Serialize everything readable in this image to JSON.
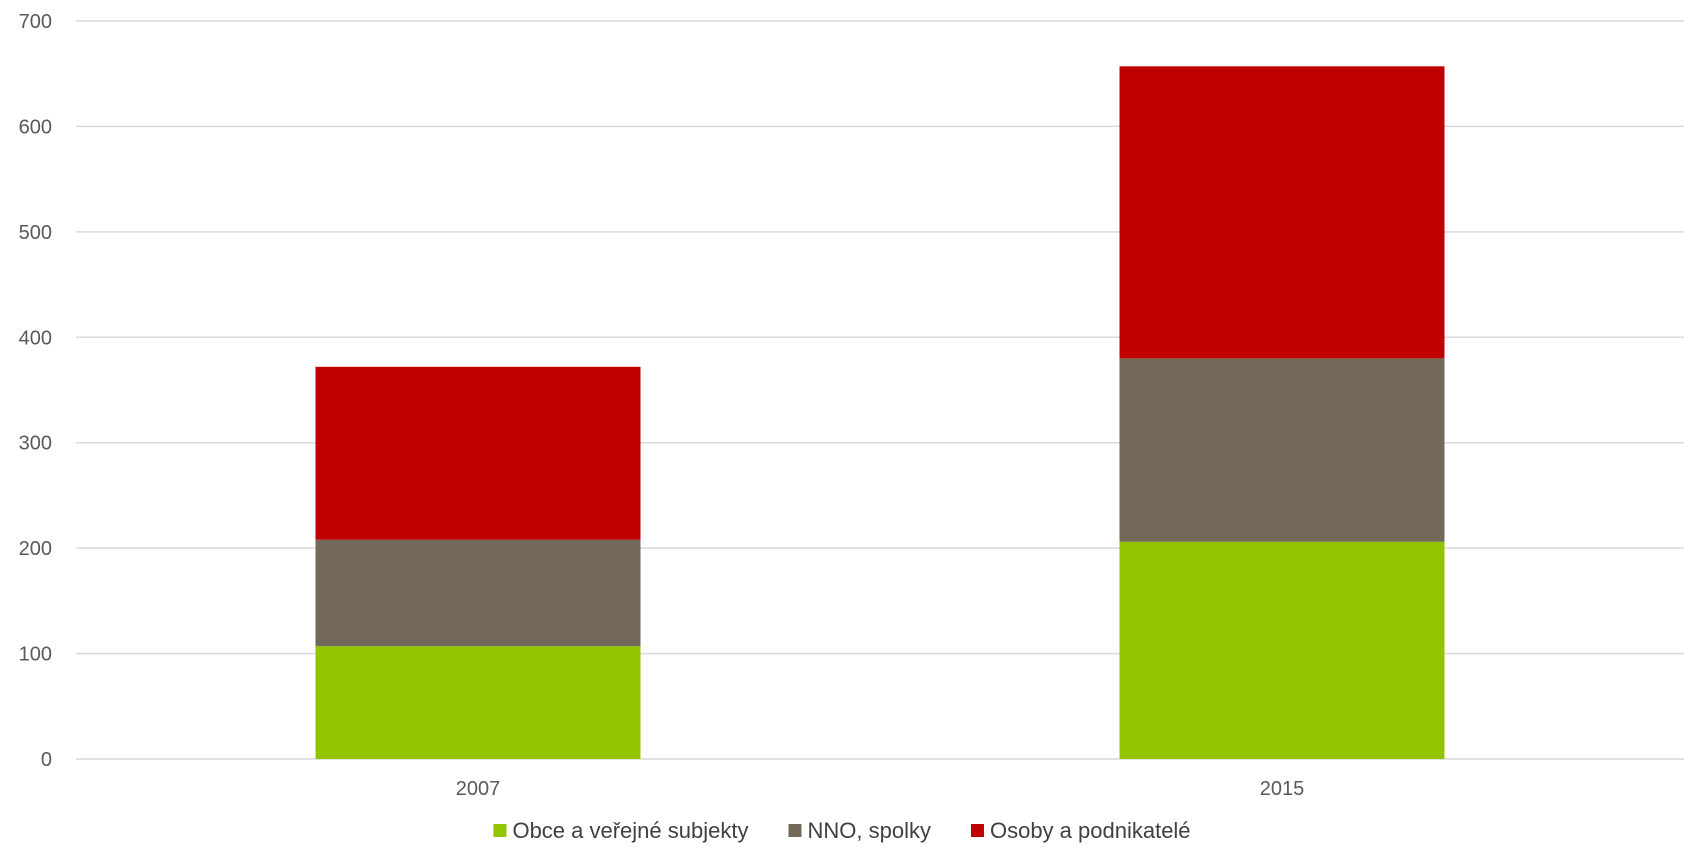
{
  "chart_data": {
    "type": "bar",
    "stacked": true,
    "title": "",
    "xlabel": "",
    "ylabel": "",
    "categories": [
      "2007",
      "2015"
    ],
    "ylim": [
      0,
      700
    ],
    "yticks": [
      "0",
      "100",
      "200",
      "300",
      "400",
      "500",
      "600",
      "700"
    ],
    "grid": true,
    "legend_position": "bottom",
    "series": [
      {
        "name": "Obce a veřejné subjekty",
        "color": "#92c400",
        "values": [
          107,
          206
        ]
      },
      {
        "name": "NNO, spolky",
        "color": "#73695a",
        "values": [
          101,
          174
        ]
      },
      {
        "name": "Osoby a podnikatelé",
        "color": "#c00000",
        "values": [
          164,
          277
        ]
      }
    ]
  }
}
